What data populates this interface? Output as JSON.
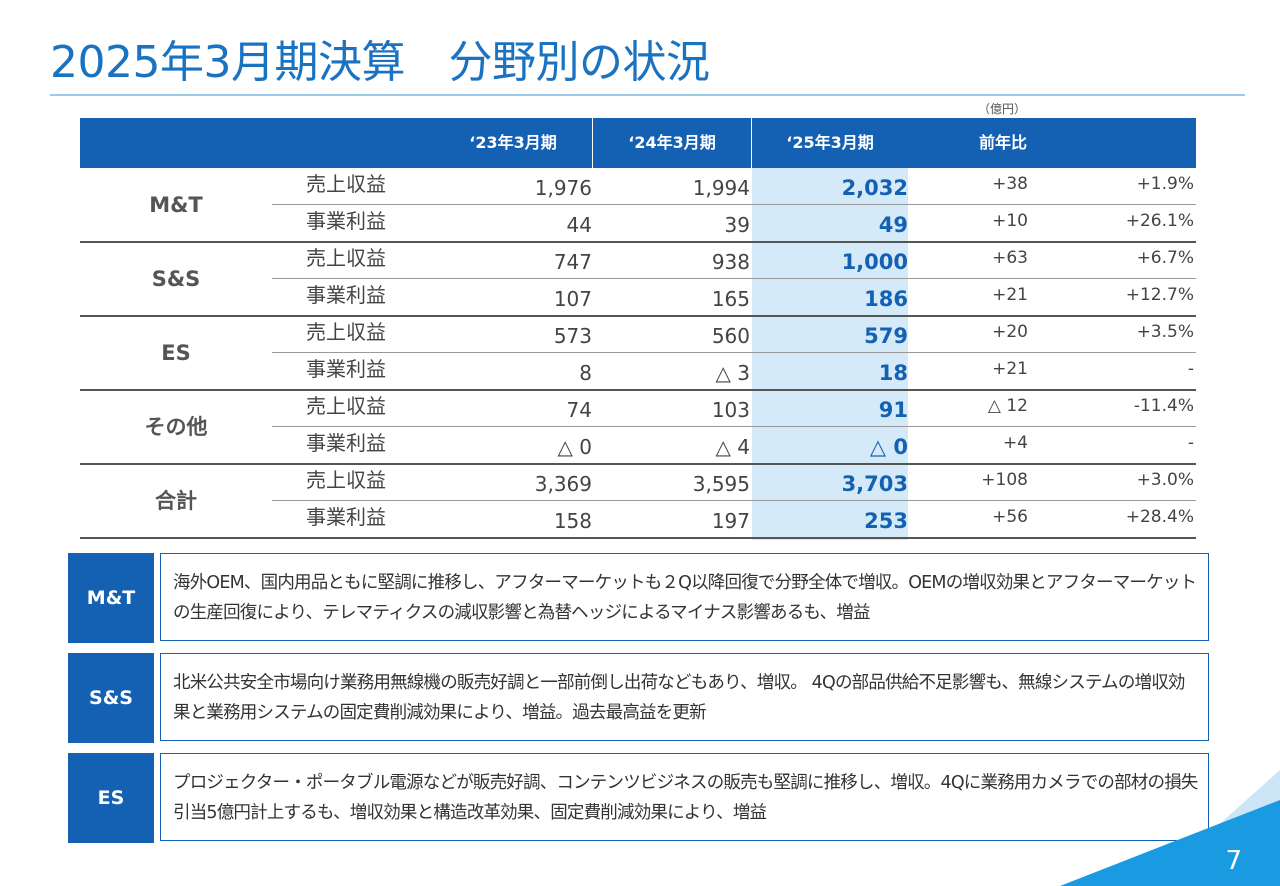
{
  "title": "2025年3月期決算　分野別の状況",
  "unit": "（億円）",
  "headers": [
    "‘23年3月期",
    "‘24年3月期",
    "‘25年3月期",
    "前年比"
  ],
  "groups": [
    {
      "label": "M&T",
      "rows": [
        {
          "item": "売上収益",
          "v1": "1,976",
          "v2": "1,994",
          "v3": "2,032",
          "diff": "+38",
          "pct": "+1.9%"
        },
        {
          "item": "事業利益",
          "v1": "44",
          "v2": "39",
          "v3": "49",
          "diff": "+10",
          "pct": "+26.1%"
        }
      ]
    },
    {
      "label": "S&S",
      "rows": [
        {
          "item": "売上収益",
          "v1": "747",
          "v2": "938",
          "v3": "1,000",
          "diff": "+63",
          "pct": "+6.7%"
        },
        {
          "item": "事業利益",
          "v1": "107",
          "v2": "165",
          "v3": "186",
          "diff": "+21",
          "pct": "+12.7%"
        }
      ]
    },
    {
      "label": "ES",
      "rows": [
        {
          "item": "売上収益",
          "v1": "573",
          "v2": "560",
          "v3": "579",
          "diff": "+20",
          "pct": "+3.5%"
        },
        {
          "item": "事業利益",
          "v1": "8",
          "v2": "△ 3",
          "v3": "18",
          "diff": "+21",
          "pct": "-"
        }
      ]
    },
    {
      "label": "その他",
      "rows": [
        {
          "item": "売上収益",
          "v1": "74",
          "v2": "103",
          "v3": "91",
          "diff": "△ 12",
          "pct": "-11.4%"
        },
        {
          "item": "事業利益",
          "v1": "△ 0",
          "v2": "△ 4",
          "v3": "△ 0",
          "diff": "+4",
          "pct": "-"
        }
      ]
    },
    {
      "label": "合計",
      "rows": [
        {
          "item": "売上収益",
          "v1": "3,369",
          "v2": "3,595",
          "v3": "3,703",
          "diff": "+108",
          "pct": "+3.0%"
        },
        {
          "item": "事業利益",
          "v1": "158",
          "v2": "197",
          "v3": "253",
          "diff": "+56",
          "pct": "+28.4%"
        }
      ]
    }
  ],
  "comments": [
    {
      "tag": "M&T",
      "text": "海外OEM、国内用品ともに堅調に推移し、アフターマーケットも２Q以降回復で分野全体で増収。OEMの増収効果とアフターマーケットの生産回復により、テレマティクスの減収影響と為替ヘッジによるマイナス影響あるも、増益"
    },
    {
      "tag": "S&S",
      "text": "北米公共安全市場向け業務用無線機の販売好調と一部前倒し出荷などもあり、増収。 4Qの部品供給不足影響も、無線システムの増収効果と業務用システムの固定費削減効果により、増益。過去最高益を更新"
    },
    {
      "tag": "ES",
      "text": "プロジェクター・ポータブル電源などが販売好調、コンテンツビジネスの販売も堅調に推移し、増収。4Qに業務用カメラでの部材の損失引当5億円計上するも、増収効果と構造改革効果、固定費削減効果により、増益"
    }
  ],
  "page_number": "7",
  "colors": {
    "accent": "#1461b3",
    "title": "#1a73c1",
    "highlight": "#d5eaf8"
  }
}
